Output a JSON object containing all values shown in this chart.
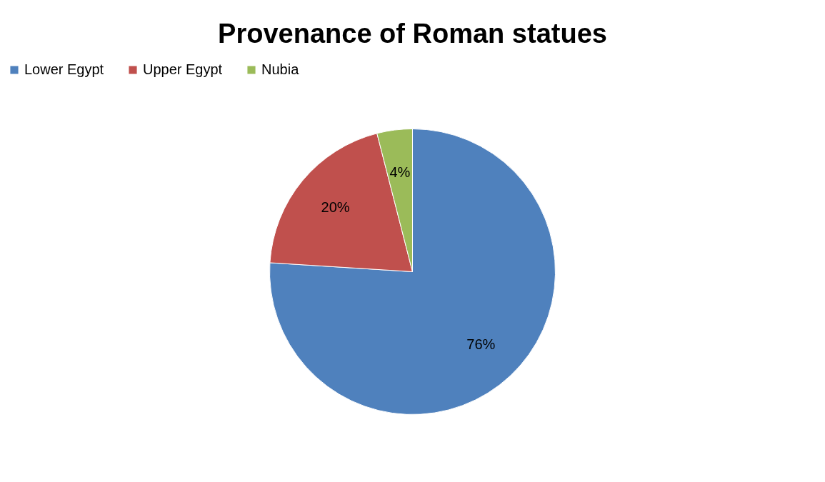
{
  "chart_data": {
    "type": "pie",
    "title": "Provenance of Roman  statues",
    "categories": [
      "Lower Egypt",
      "Upper Egypt",
      "Nubia"
    ],
    "values": [
      76,
      20,
      4
    ],
    "colors": [
      "#4f81bd",
      "#c0504d",
      "#9bbb59"
    ],
    "value_labels": [
      "76%",
      "20%",
      "4%"
    ],
    "legend": "top"
  }
}
